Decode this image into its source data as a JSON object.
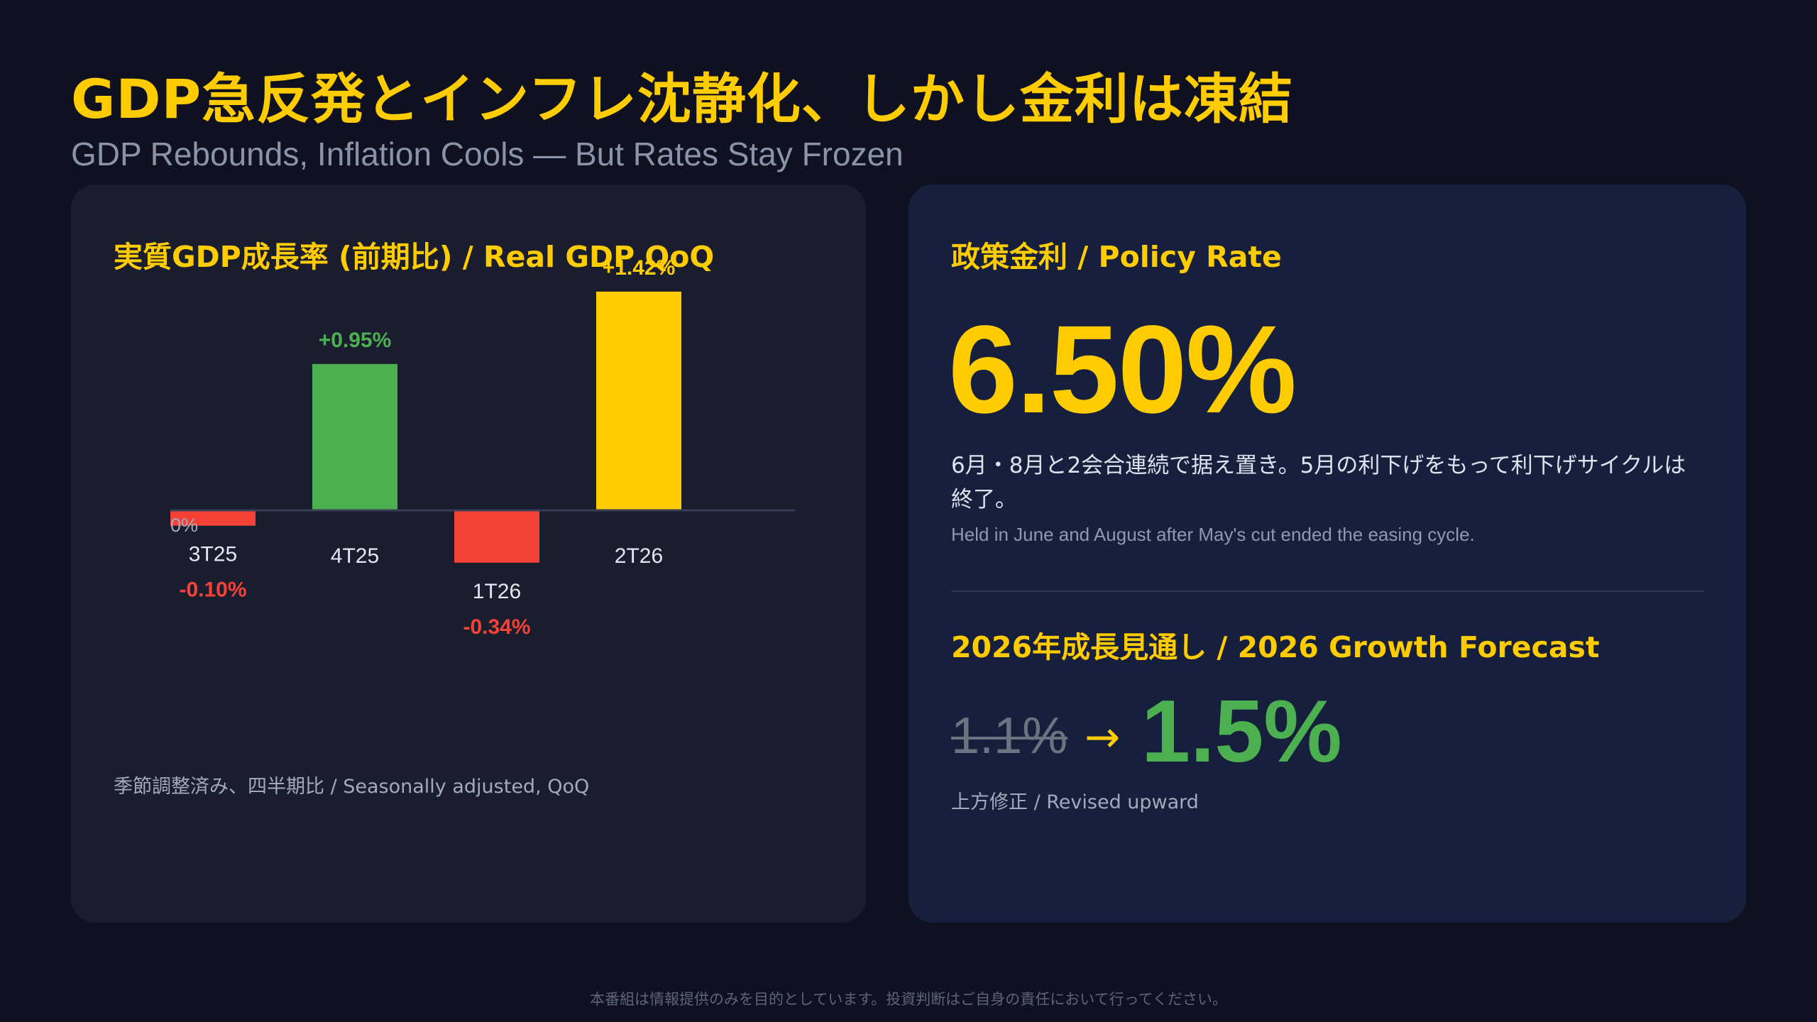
{
  "header": {
    "title": "GDP急反発とインフレ沈静化、しかし金利は凍結",
    "subtitle": "GDP Rebounds, Inflation Cools — But Rates Stay Frozen"
  },
  "gdp_panel": {
    "title": "実質GDP成長率 (前期比) / Real GDP QoQ",
    "note": "季節調整済み、四半期比 / Seasonally adjusted, QoQ"
  },
  "chart_data": {
    "type": "bar",
    "title": "実質GDP成長率 (前期比) / Real GDP QoQ",
    "categories": [
      "3T25",
      "4T25",
      "1T26",
      "2T26"
    ],
    "values": [
      -0.1,
      0.95,
      -0.34,
      1.42
    ],
    "value_labels": [
      "-0.10%",
      "+0.95%",
      "-0.34%",
      "+1.42%"
    ],
    "bar_colors": [
      "#f44336",
      "#4caf50",
      "#f44336",
      "#ffcc00"
    ],
    "zero_label": "0%",
    "grid": false,
    "legend": "none"
  },
  "policy_panel": {
    "title": "政策金利 / Policy Rate",
    "rate": "6.50%",
    "desc_ja": "6月・8月と2会合連続で据え置き。5月の利下げをもって利下げサイクルは終了。",
    "desc_en": "Held in June and August after May's cut ended the easing cycle."
  },
  "forecast_panel": {
    "title": "2026年成長見通し / 2026 Growth Forecast",
    "old_value": "1.1%",
    "arrow": "→",
    "new_value": "1.5%",
    "note": "上方修正 / Revised upward"
  },
  "colors": {
    "accent": "#ffcc00",
    "positive": "#4caf50",
    "negative": "#f44336",
    "background": "#0f1120"
  },
  "footer": {
    "disclaimer": "本番組は情報提供のみを目的としています。投資判断はご自身の責任において行ってください。"
  }
}
